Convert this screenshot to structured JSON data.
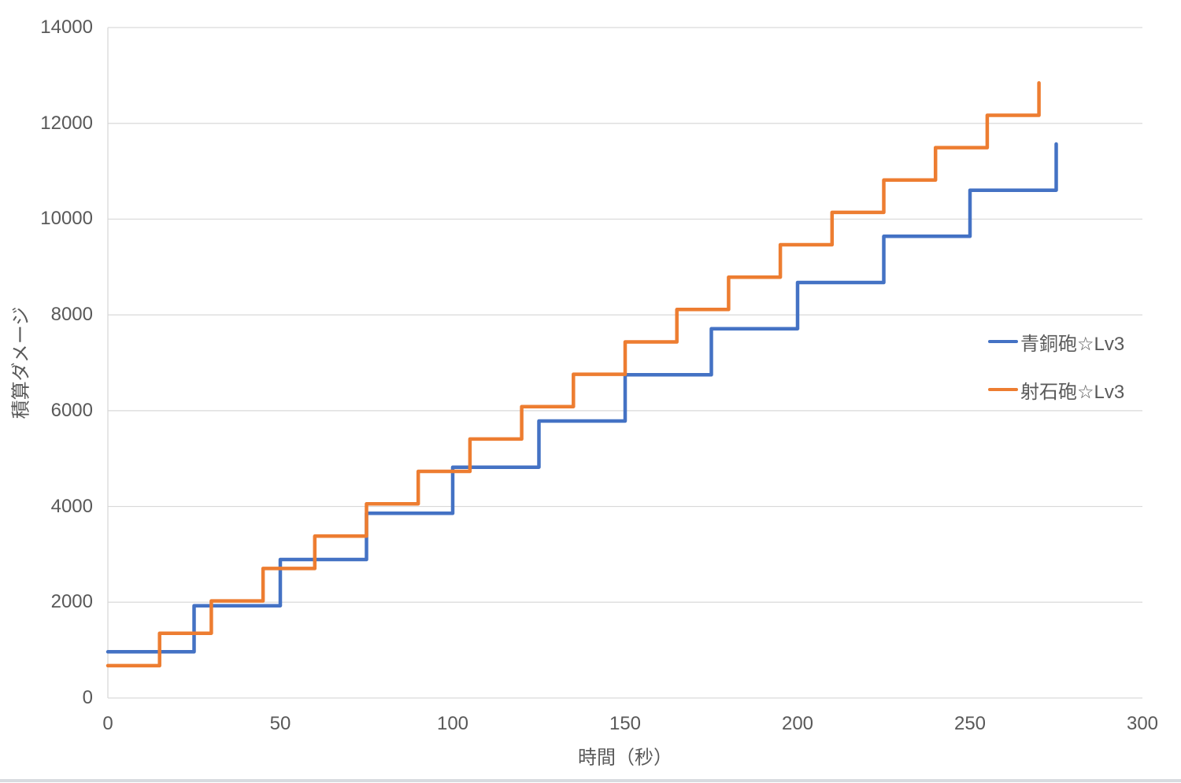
{
  "chart_data": {
    "type": "line",
    "subtype": "step-cumulative",
    "title": "",
    "xlabel": "時間（秒）",
    "ylabel": "積算ダメージ",
    "xlim": [
      0,
      300
    ],
    "ylim": [
      0,
      14000
    ],
    "x_ticks": [
      0,
      50,
      100,
      150,
      200,
      250,
      300
    ],
    "y_ticks": [
      0,
      2000,
      4000,
      6000,
      8000,
      10000,
      12000,
      14000
    ],
    "grid": "horizontal-only",
    "grid_color": "#D9D9D9",
    "axis_line_color": "#D6D6D6",
    "text_color": "#595959",
    "legend_position": "middle-right-inside",
    "series": [
      {
        "name": "青銅砲☆Lv3",
        "color": "#4472C4",
        "shot_interval_s": 25,
        "damage_per_shot": 964,
        "x": [
          0,
          25,
          50,
          75,
          100,
          125,
          150,
          175,
          200,
          225,
          250,
          275
        ],
        "cumulative": [
          964,
          1928,
          2892,
          3856,
          4820,
          5784,
          6748,
          7712,
          8676,
          9640,
          10604,
          11568
        ]
      },
      {
        "name": "射石砲☆Lv3",
        "color": "#ED7D31",
        "shot_interval_s": 15,
        "damage_per_shot": 676,
        "x": [
          0,
          15,
          30,
          45,
          60,
          75,
          90,
          105,
          120,
          135,
          150,
          165,
          180,
          195,
          210,
          225,
          240,
          255,
          270
        ],
        "cumulative": [
          676,
          1352,
          2028,
          2704,
          3380,
          4056,
          4732,
          5408,
          6084,
          6760,
          7436,
          8112,
          8788,
          9464,
          10140,
          10816,
          11492,
          12168,
          12844
        ]
      }
    ]
  }
}
